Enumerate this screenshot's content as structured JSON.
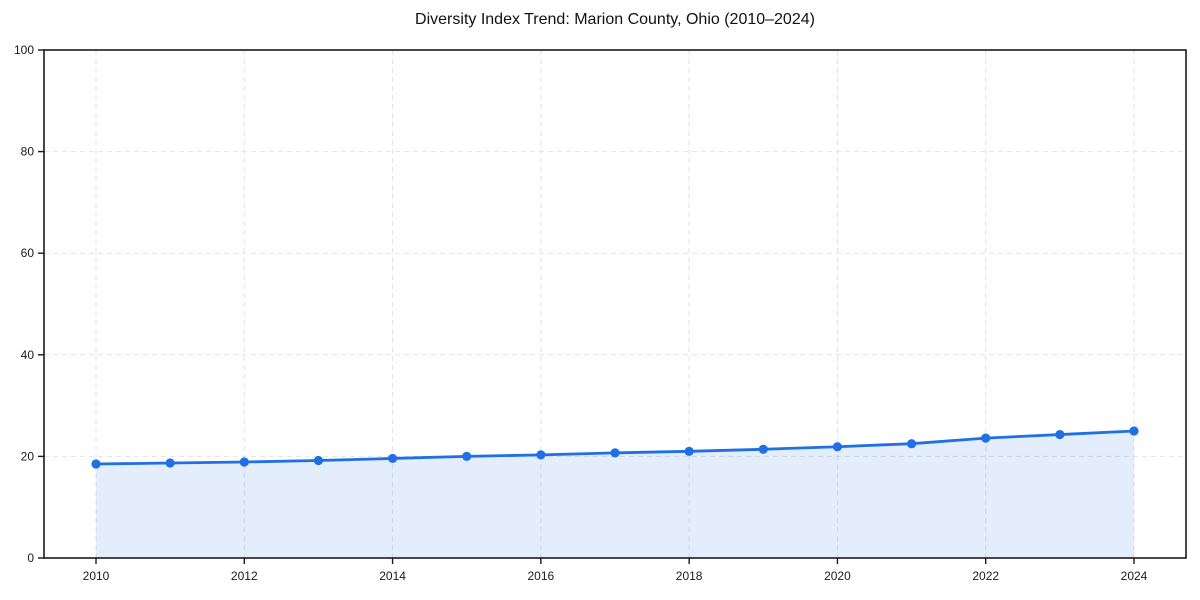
{
  "chart_data": {
    "type": "line",
    "title": "Diversity Index Trend: Marion County, Ohio (2010–2024)",
    "x": [
      2010,
      2011,
      2012,
      2013,
      2014,
      2015,
      2016,
      2017,
      2018,
      2019,
      2020,
      2021,
      2022,
      2023,
      2024
    ],
    "series": [
      {
        "name": "Diversity Index",
        "values": [
          18.5,
          18.7,
          18.9,
          19.2,
          19.6,
          20.0,
          20.3,
          20.7,
          21.0,
          21.4,
          21.9,
          22.5,
          23.6,
          24.3,
          25.0
        ]
      }
    ],
    "xlabel": "",
    "ylabel": "",
    "xlim": [
      2010,
      2024
    ],
    "ylim": [
      0,
      100
    ],
    "xticks": [
      2010,
      2012,
      2014,
      2016,
      2018,
      2020,
      2022,
      2024
    ],
    "yticks": [
      0,
      20,
      40,
      60,
      80,
      100
    ],
    "grid": true,
    "grid_style": "dashed",
    "legend": "none",
    "marker": "circle",
    "area_fill": true,
    "colors": {
      "line": "#1f6fe5",
      "marker": "#1f6fe5",
      "area_fill": "rgba(31,111,229,0.12)",
      "grid": "#e2e2e2",
      "axis": "#1a1a1a",
      "tick_text": "#1a1a1a",
      "title_text": "#111111",
      "background": "#ffffff"
    }
  }
}
